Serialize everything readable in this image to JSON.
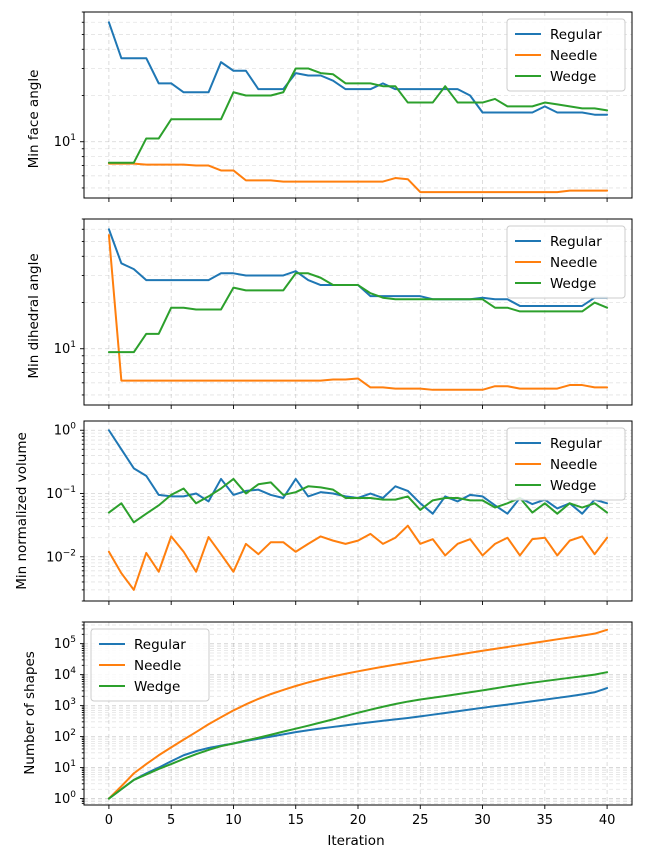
{
  "chart_data": [
    {
      "type": "line",
      "ylabel": "Min face angle",
      "xlabel": "",
      "yscale": "log",
      "ylim": [
        4.3,
        70
      ],
      "yticks": [
        10
      ],
      "xlim": [
        -2,
        42
      ],
      "xticks": [
        0,
        5,
        10,
        15,
        20,
        25,
        30,
        35,
        40
      ],
      "legend": "top-right",
      "series": [
        {
          "name": "Regular",
          "color": "#1f77b4",
          "values": [
            60,
            35,
            35,
            35,
            24,
            24,
            21,
            21,
            21,
            33,
            29,
            29,
            22,
            22,
            22,
            28,
            27,
            27,
            25,
            22,
            22,
            22,
            24,
            22,
            22,
            22,
            22,
            22,
            22,
            20,
            15.5,
            15.5,
            15.5,
            15.5,
            15.5,
            17,
            15.5,
            15.5,
            15.5,
            15,
            15
          ]
        },
        {
          "name": "Needle",
          "color": "#ff7f0e",
          "values": [
            7.2,
            7.2,
            7.2,
            7.1,
            7.1,
            7.1,
            7.1,
            7,
            7,
            6.5,
            6.5,
            5.6,
            5.6,
            5.6,
            5.5,
            5.5,
            5.5,
            5.5,
            5.5,
            5.5,
            5.5,
            5.5,
            5.5,
            5.8,
            5.7,
            4.7,
            4.7,
            4.7,
            4.7,
            4.7,
            4.7,
            4.7,
            4.7,
            4.7,
            4.7,
            4.7,
            4.7,
            4.8,
            4.8,
            4.8,
            4.8
          ]
        },
        {
          "name": "Wedge",
          "color": "#2ca02c",
          "values": [
            7.3,
            7.3,
            7.3,
            10.5,
            10.5,
            14,
            14,
            14,
            14,
            14,
            21,
            20,
            20,
            20,
            21,
            30,
            30,
            28,
            27.5,
            24,
            24,
            24,
            23,
            23,
            18,
            18,
            18,
            23,
            18,
            18,
            18,
            19,
            17,
            17,
            17,
            18,
            17.5,
            17,
            16.5,
            16.5,
            16
          ]
        }
      ]
    },
    {
      "type": "line",
      "ylabel": "Min dihedral angle",
      "xlabel": "",
      "yscale": "log",
      "ylim": [
        4.3,
        70
      ],
      "yticks": [
        10
      ],
      "xlim": [
        -2,
        42
      ],
      "xticks": [
        0,
        5,
        10,
        15,
        20,
        25,
        30,
        35,
        40
      ],
      "legend": "top-right",
      "series": [
        {
          "name": "Regular",
          "color": "#1f77b4",
          "values": [
            60,
            36,
            33,
            28,
            28,
            28,
            28,
            28,
            28,
            31,
            31,
            30,
            30,
            30,
            30,
            32,
            28,
            26,
            26,
            26,
            26,
            22,
            22,
            22,
            22,
            22,
            21,
            21,
            21,
            21,
            21.5,
            21,
            21,
            19,
            19,
            19,
            19,
            19,
            19,
            21.5,
            21.5
          ]
        },
        {
          "name": "Needle",
          "color": "#ff7f0e",
          "values": [
            55,
            6.2,
            6.2,
            6.2,
            6.2,
            6.2,
            6.2,
            6.2,
            6.2,
            6.2,
            6.2,
            6.2,
            6.2,
            6.2,
            6.2,
            6.2,
            6.2,
            6.2,
            6.3,
            6.3,
            6.4,
            5.6,
            5.6,
            5.5,
            5.5,
            5.5,
            5.4,
            5.4,
            5.4,
            5.4,
            5.4,
            5.7,
            5.7,
            5.5,
            5.5,
            5.5,
            5.5,
            5.8,
            5.8,
            5.6,
            5.6
          ]
        },
        {
          "name": "Wedge",
          "color": "#2ca02c",
          "values": [
            9.5,
            9.5,
            9.5,
            12.5,
            12.5,
            18.5,
            18.5,
            18,
            18,
            18,
            25,
            24,
            24,
            24,
            24,
            31,
            31,
            29,
            26,
            26,
            26,
            23,
            21.5,
            21,
            21,
            21,
            21,
            21,
            21,
            21,
            21,
            18.5,
            18.5,
            17.5,
            17.5,
            17.5,
            17.5,
            17.5,
            17.5,
            20,
            18.5
          ]
        }
      ]
    },
    {
      "type": "line",
      "ylabel": "Min normalized volume",
      "xlabel": "",
      "yscale": "log",
      "ylim": [
        0.002,
        1.4
      ],
      "yticks": [
        0.01,
        0.1,
        1
      ],
      "xlim": [
        -2,
        42
      ],
      "xticks": [
        0,
        5,
        10,
        15,
        20,
        25,
        30,
        35,
        40
      ],
      "legend": "top-right",
      "series": [
        {
          "name": "Regular",
          "color": "#1f77b4",
          "values": [
            1.0,
            0.5,
            0.25,
            0.19,
            0.095,
            0.09,
            0.09,
            0.1,
            0.075,
            0.17,
            0.095,
            0.11,
            0.115,
            0.095,
            0.085,
            0.17,
            0.09,
            0.105,
            0.1,
            0.09,
            0.085,
            0.1,
            0.085,
            0.13,
            0.11,
            0.07,
            0.048,
            0.09,
            0.075,
            0.095,
            0.09,
            0.065,
            0.048,
            0.085,
            0.068,
            0.08,
            0.058,
            0.07,
            0.048,
            0.08,
            0.07
          ]
        },
        {
          "name": "Needle",
          "color": "#ff7f0e",
          "values": [
            0.012,
            0.0055,
            0.003,
            0.0115,
            0.0058,
            0.021,
            0.012,
            0.0058,
            0.0205,
            0.011,
            0.0058,
            0.016,
            0.011,
            0.017,
            0.017,
            0.012,
            0.016,
            0.021,
            0.018,
            0.016,
            0.018,
            0.023,
            0.016,
            0.02,
            0.031,
            0.016,
            0.019,
            0.0105,
            0.016,
            0.019,
            0.0105,
            0.016,
            0.02,
            0.0105,
            0.019,
            0.02,
            0.0105,
            0.018,
            0.021,
            0.011,
            0.02
          ]
        },
        {
          "name": "Wedge",
          "color": "#2ca02c",
          "values": [
            0.05,
            0.07,
            0.035,
            0.048,
            0.065,
            0.095,
            0.12,
            0.07,
            0.09,
            0.12,
            0.17,
            0.1,
            0.14,
            0.15,
            0.095,
            0.105,
            0.13,
            0.125,
            0.115,
            0.085,
            0.085,
            0.085,
            0.08,
            0.08,
            0.09,
            0.055,
            0.078,
            0.085,
            0.085,
            0.078,
            0.078,
            0.06,
            0.07,
            0.085,
            0.05,
            0.07,
            0.048,
            0.07,
            0.06,
            0.07,
            0.05
          ]
        }
      ]
    },
    {
      "type": "line",
      "ylabel": "Number of shapes",
      "xlabel": "Iteration",
      "yscale": "log",
      "ylim": [
        0.62,
        500000
      ],
      "yticks": [
        1,
        10,
        100,
        1000,
        10000,
        100000
      ],
      "xlim": [
        -2,
        42
      ],
      "xticks": [
        0,
        5,
        10,
        15,
        20,
        25,
        30,
        35,
        40
      ],
      "legend": "top-left",
      "series": [
        {
          "name": "Regular",
          "color": "#1f77b4",
          "values": [
            1,
            2,
            4,
            6.5,
            10,
            16,
            25,
            34,
            43,
            51,
            60,
            72,
            85,
            100,
            118,
            140,
            160,
            182,
            205,
            230,
            260,
            290,
            325,
            360,
            400,
            450,
            510,
            580,
            660,
            750,
            850,
            960,
            1080,
            1220,
            1380,
            1560,
            1770,
            2000,
            2300,
            2700,
            3700
          ]
        },
        {
          "name": "Needle",
          "color": "#ff7f0e",
          "values": [
            1,
            2.5,
            6.5,
            13,
            25,
            45,
            80,
            140,
            250,
            420,
            700,
            1100,
            1650,
            2350,
            3200,
            4300,
            5600,
            7100,
            8800,
            10700,
            12800,
            15200,
            18000,
            21000,
            24500,
            28500,
            33000,
            38000,
            44000,
            51000,
            59000,
            68000,
            78000,
            90000,
            104000,
            120000,
            138000,
            158000,
            182000,
            210000,
            280000
          ]
        },
        {
          "name": "Wedge",
          "color": "#2ca02c",
          "values": [
            1,
            2,
            4,
            6,
            9,
            13,
            19,
            27,
            37,
            49,
            60,
            75,
            92,
            115,
            145,
            180,
            225,
            285,
            360,
            460,
            590,
            740,
            920,
            1130,
            1350,
            1580,
            1800,
            2050,
            2350,
            2700,
            3100,
            3600,
            4200,
            4800,
            5500,
            6200,
            7000,
            7900,
            8900,
            10000,
            12000
          ]
        }
      ]
    }
  ]
}
